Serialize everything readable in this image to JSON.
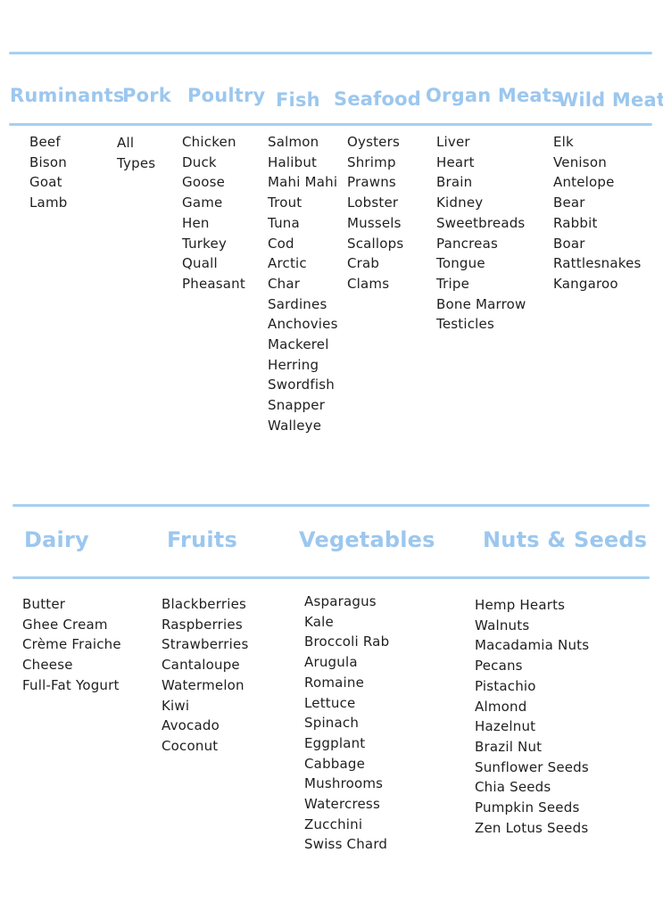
{
  "theme": {
    "accent_blue": "#9cc7ee",
    "line_blue": "#a6d0f2",
    "text_color": "#1f1f1f",
    "background": "#ffffff"
  },
  "section_meats": {
    "columns": [
      {
        "header": "Ruminants",
        "items": [
          "Beef",
          "Bison",
          "Goat",
          "Lamb"
        ]
      },
      {
        "header": "Pork",
        "items": [
          "All",
          "Types"
        ]
      },
      {
        "header": "Poultry",
        "items": [
          "Chicken",
          "Duck",
          "Goose",
          "Game",
          "Hen",
          "Turkey",
          "Quall",
          "Pheasant"
        ]
      },
      {
        "header": "Fish",
        "items": [
          "Salmon",
          "Halibut",
          "Mahi Mahi",
          "Trout",
          "Tuna",
          "Cod",
          "Arctic",
          "Char",
          "Sardines",
          "Anchovies",
          "Mackerel",
          "Herring",
          "Swordfish",
          "Snapper",
          "Walleye"
        ]
      },
      {
        "header": "Seafood",
        "items": [
          "Oysters",
          "Shrimp",
          "Prawns",
          "Lobster",
          "Mussels",
          "Scallops",
          "Crab",
          "Clams"
        ]
      },
      {
        "header": "Organ Meats",
        "items": [
          "Liver",
          "Heart",
          "Brain",
          "Kidney",
          "Sweetbreads",
          "Pancreas",
          "Tongue",
          "Tripe",
          "Bone Marrow",
          "Testicles"
        ]
      },
      {
        "header": "Wild Meat",
        "items": [
          "Elk",
          "Venison",
          "Antelope",
          "Bear",
          "Rabbit",
          "Boar",
          "Rattlesnakes",
          "Kangaroo"
        ]
      }
    ]
  },
  "section_produce": {
    "columns": [
      {
        "header": "Dairy",
        "items": [
          "Butter",
          "Ghee Cream",
          "Crème Fraiche",
          "Cheese",
          "Full-Fat Yogurt"
        ]
      },
      {
        "header": "Fruits",
        "items": [
          "Blackberries",
          "Raspberries",
          "Strawberries",
          "Cantaloupe",
          "Watermelon",
          "Kiwi",
          "Avocado",
          "Coconut"
        ]
      },
      {
        "header": "Vegetables",
        "items": [
          "Asparagus",
          "Kale",
          "Broccoli Rab",
          "Arugula",
          "Romaine",
          "Lettuce",
          "Spinach",
          "Eggplant",
          "Cabbage",
          "Mushrooms",
          "Watercress",
          "Zucchini",
          "Swiss Chard"
        ]
      },
      {
        "header": "Nuts & Seeds",
        "items": [
          "Hemp Hearts",
          "Walnuts",
          "Macadamia Nuts",
          "Pecans",
          "Pistachio",
          "Almond",
          "Hazelnut",
          "Brazil Nut",
          "Sunflower Seeds",
          "Chia Seeds",
          "Pumpkin Seeds",
          "Zen Lotus Seeds"
        ]
      }
    ]
  }
}
